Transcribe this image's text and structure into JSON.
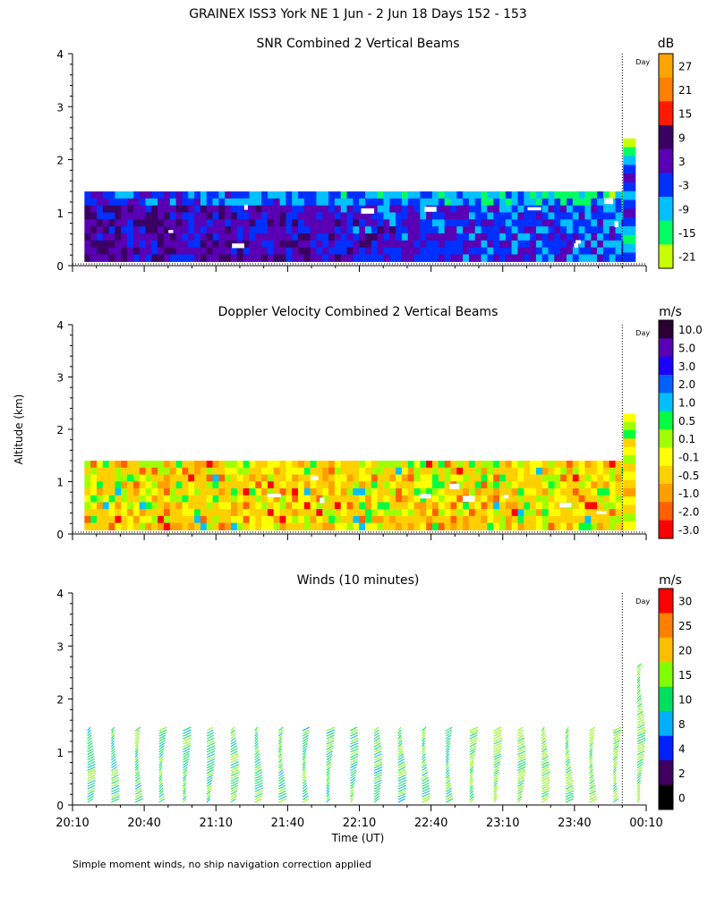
{
  "header": {
    "title": "GRAINEX ISS3 York NE   1 Jun -  2 Jun 18 Days 152 - 153"
  },
  "y_axis_label": "Altitude (km)",
  "x_axis_label": "Time (UT)",
  "x_tick_labels": [
    "20:10",
    "20:40",
    "21:10",
    "21:40",
    "22:10",
    "22:40",
    "23:10",
    "23:40",
    "00:10"
  ],
  "y_tick_labels": [
    "0",
    "1",
    "2",
    "3",
    "4"
  ],
  "day_marker_label": "Day",
  "footer_note": "Simple moment winds, no ship navigation correction applied",
  "chart_data": [
    {
      "type": "heatmap",
      "title": "SNR Combined 2 Vertical Beams",
      "unit": "dB",
      "x_range": [
        "20:10",
        "00:10"
      ],
      "ylim": [
        0,
        4
      ],
      "ylabel": "Altitude (km)",
      "data_top_km": 1.4,
      "data_top_after_day_boundary_km": 2.4,
      "day_boundary_time": "00:00",
      "colorbar": {
        "labels": [
          "27",
          "21",
          "15",
          "9",
          "3",
          "-3",
          "-9",
          "-15",
          "-21"
        ],
        "colors": [
          "#ffa500",
          "#ff7f00",
          "#ff1a00",
          "#3a0064",
          "#5a00b4",
          "#0030ff",
          "#00c0ff",
          "#00ff60",
          "#c8ff00"
        ]
      }
    },
    {
      "type": "heatmap",
      "title": "Doppler Velocity Combined 2 Vertical Beams",
      "unit": "m/s",
      "x_range": [
        "20:10",
        "00:10"
      ],
      "ylim": [
        0,
        4
      ],
      "ylabel": "Altitude (km)",
      "data_top_km": 1.4,
      "data_top_after_day_boundary_km": 2.3,
      "day_boundary_time": "00:00",
      "colorbar": {
        "labels": [
          "10.0",
          "5.0",
          "3.0",
          "2.0",
          "1.0",
          "0.5",
          "0.1",
          "-0.1",
          "-0.5",
          "-1.0",
          "-2.0",
          "-3.0"
        ],
        "colors": [
          "#2a0030",
          "#5a00b4",
          "#1a00ff",
          "#0060ff",
          "#00c0ff",
          "#00ff40",
          "#a0ff00",
          "#ffff00",
          "#ffd000",
          "#ffa000",
          "#ff6000",
          "#ff0000"
        ]
      }
    },
    {
      "type": "scatter",
      "title": "Winds (10 minutes)",
      "unit": "m/s",
      "xlabel": "Time (UT)",
      "ylabel": "Altitude (km)",
      "x_range": [
        "20:10",
        "00:10"
      ],
      "ylim": [
        0,
        4
      ],
      "profile_times": [
        "20:17",
        "20:27",
        "20:37",
        "20:47",
        "20:57",
        "21:07",
        "21:17",
        "21:27",
        "21:37",
        "21:47",
        "21:57",
        "22:07",
        "22:17",
        "22:27",
        "22:37",
        "22:47",
        "22:57",
        "23:07",
        "23:17",
        "23:27",
        "23:37",
        "23:47",
        "23:57",
        "00:07"
      ],
      "profile_top_km": 1.4,
      "profile_top_after_day_boundary_km": 2.6,
      "day_boundary_time": "00:00",
      "colorbar": {
        "labels": [
          "30",
          "25",
          "20",
          "15",
          "10",
          "8",
          "4",
          "2",
          "0"
        ],
        "colors": [
          "#ff0000",
          "#ff7f00",
          "#ffbf00",
          "#80ff00",
          "#00e060",
          "#00b0ff",
          "#0020ff",
          "#400060",
          "#000000"
        ]
      }
    }
  ]
}
